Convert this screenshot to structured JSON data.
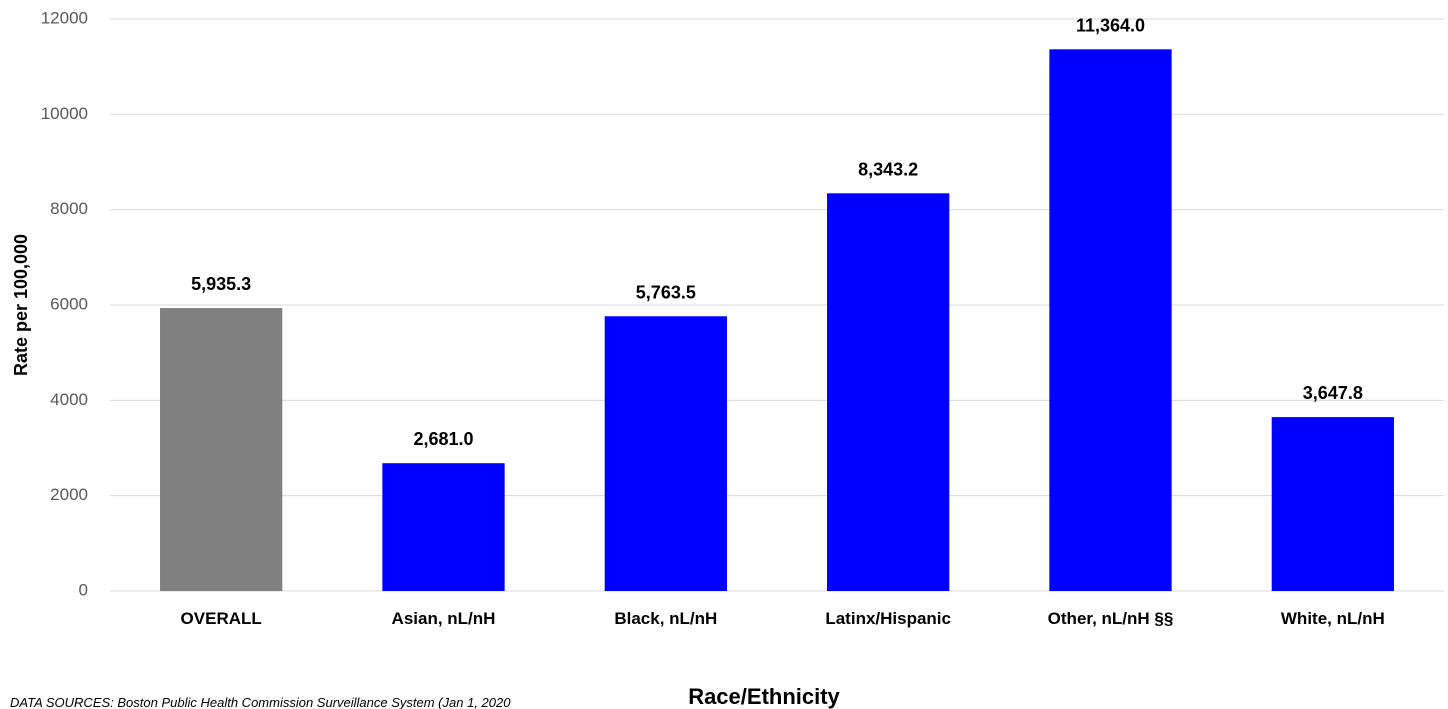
{
  "chart_data": {
    "type": "bar",
    "categories": [
      "OVERALL",
      "Asian, nL/nH",
      "Black, nL/nH",
      "Latinx/Hispanic",
      "Other, nL/nH §§",
      "White, nL/nH"
    ],
    "values": [
      5935.3,
      2681.0,
      5763.5,
      8343.2,
      11364.0,
      3647.8
    ],
    "data_labels": [
      "5,935.3",
      "2,681.0",
      "5,763.5",
      "8,343.2",
      "11,364.0",
      "3,647.8"
    ],
    "bar_colors": [
      "#808080",
      "#0000ff",
      "#0000ff",
      "#0000ff",
      "#0000ff",
      "#0000ff"
    ],
    "title": "",
    "xlabel": "Race/Ethnicity",
    "ylabel": "Rate per 100,000",
    "ylim": [
      0,
      12000
    ],
    "yticks": [
      "0",
      "2000",
      "4000",
      "6000",
      "8000",
      "10000",
      "12000"
    ],
    "grid": true,
    "legend": "none"
  },
  "footer": {
    "source_note": "DATA SOURCES: Boston Public Health Commission Surveillance System (Jan 1, 2020"
  }
}
